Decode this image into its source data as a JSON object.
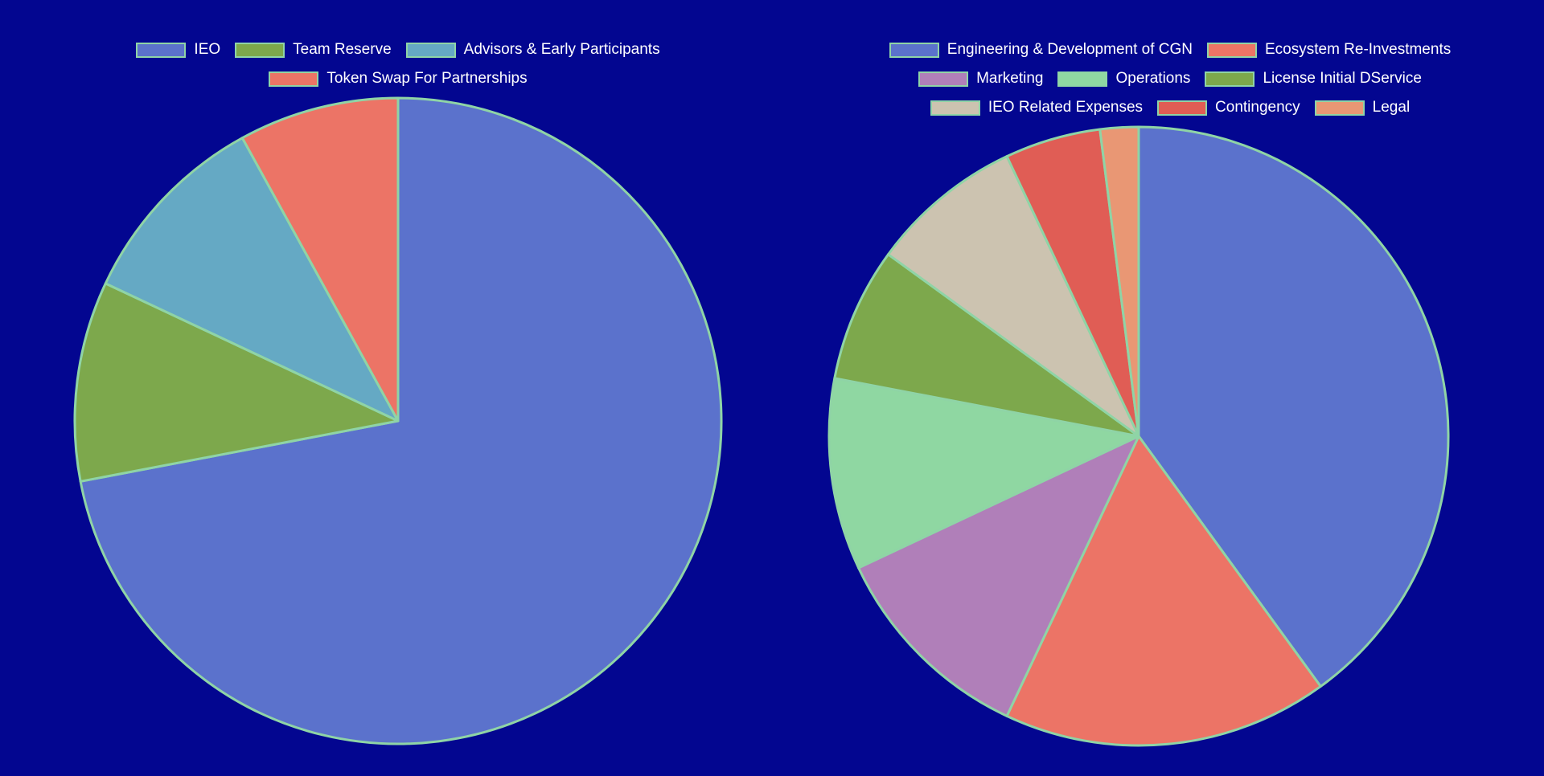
{
  "chart_data": [
    {
      "type": "pie",
      "title": "",
      "legend_position": "top",
      "slice_border_color": "#8fd4a6",
      "background": "#030690",
      "categories": [
        "IEO",
        "Team Reserve",
        "Advisors & Early Participants",
        "Token Swap For Partnerships"
      ],
      "values": [
        72,
        10,
        10,
        8
      ],
      "colors": [
        "#5b72cc",
        "#7da84c",
        "#65a9c4",
        "#ec7466"
      ],
      "legend_rows": [
        [
          0,
          1,
          2
        ],
        [
          3
        ]
      ]
    },
    {
      "type": "pie",
      "title": "",
      "legend_position": "top",
      "slice_border_color": "#8fd4a6",
      "background": "#030690",
      "categories": [
        "Engineering & Development of CGN",
        "Ecosystem Re-Investments",
        "Marketing",
        "Operations",
        "License Initial DService",
        "IEO Related Expenses",
        "Contingency",
        "Legal"
      ],
      "values": [
        40,
        17,
        11,
        10,
        7,
        8,
        5,
        2
      ],
      "colors": [
        "#5b72cc",
        "#ec7466",
        "#b07fb9",
        "#8fd7a2",
        "#7da84c",
        "#ccc3b0",
        "#e05d55",
        "#e99774"
      ],
      "legend_rows": [
        [
          0,
          1
        ],
        [
          2,
          3,
          4
        ],
        [
          5,
          6,
          7
        ]
      ]
    }
  ]
}
